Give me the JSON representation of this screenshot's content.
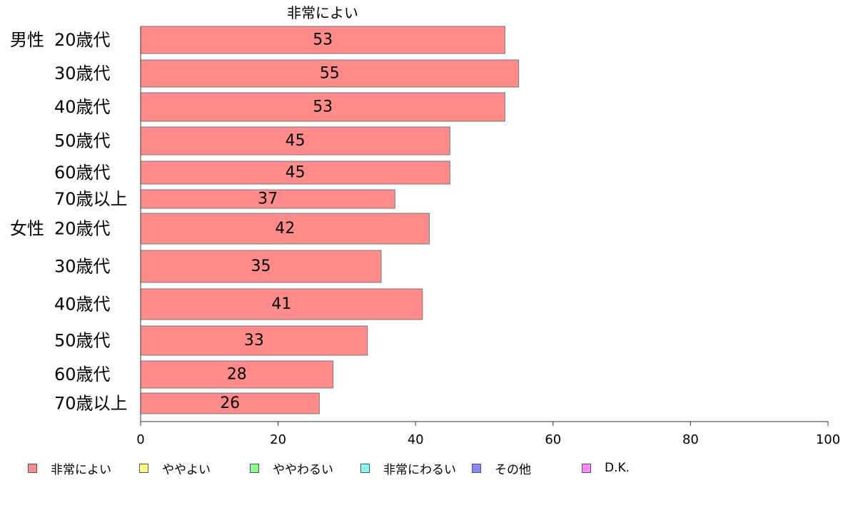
{
  "chart_data": {
    "type": "bar",
    "orientation": "horizontal",
    "title": "非常によい",
    "groups": [
      {
        "name": "男性",
        "first_category_index": 0
      },
      {
        "name": "女性",
        "first_category_index": 6
      }
    ],
    "categories": [
      "20歳代",
      "30歳代",
      "40歳代",
      "50歳代",
      "60歳代",
      "70歳以上",
      "20歳代",
      "30歳代",
      "40歳代",
      "50歳代",
      "60歳代",
      "70歳以上"
    ],
    "series": [
      {
        "name": "非常によい",
        "color": "#ff8a8a",
        "values": [
          53,
          55,
          53,
          45,
          45,
          37,
          42,
          35,
          41,
          33,
          28,
          26
        ]
      }
    ],
    "xlim": [
      0,
      100
    ],
    "xticks": [
      "0",
      "20",
      "40",
      "60",
      "80",
      "100"
    ],
    "grid": false,
    "legend_position": "bottom",
    "legend": [
      {
        "label": "非常によい",
        "color": "#ff8a8a"
      },
      {
        "label": "ややよい",
        "color": "#ffff88"
      },
      {
        "label": "ややわるい",
        "color": "#88ff88"
      },
      {
        "label": "非常にわるい",
        "color": "#88ffff"
      },
      {
        "label": "その他",
        "color": "#8888ff"
      },
      {
        "label": "D.K.",
        "color": "#ff88ff"
      }
    ]
  }
}
